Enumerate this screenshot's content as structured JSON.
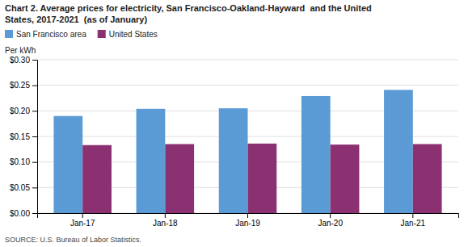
{
  "chart_data": {
    "type": "bar",
    "title": "Chart 2. Average prices for electricity, San Francisco-Oakland-Hayward  and the United\nStates, 2017-2021  (as of January)",
    "y_label": "Per kWh",
    "source": "SOURCE: U.S. Bureau of Labor Statistics.",
    "categories": [
      "Jan-17",
      "Jan-18",
      "Jan-19",
      "Jan-20",
      "Jan-21"
    ],
    "series": [
      {
        "name": "San Francisco area",
        "color": "#5B9BD5",
        "values": [
          0.19,
          0.204,
          0.205,
          0.229,
          0.241
        ]
      },
      {
        "name": "United States",
        "color": "#8B3070",
        "values": [
          0.133,
          0.135,
          0.136,
          0.134,
          0.135
        ]
      }
    ],
    "ylim": [
      0.0,
      0.3
    ],
    "yticks": [
      {
        "value": 0.0,
        "label": "$0.00"
      },
      {
        "value": 0.05,
        "label": "$0.05"
      },
      {
        "value": 0.1,
        "label": "$0.10"
      },
      {
        "value": 0.15,
        "label": "$0.15"
      },
      {
        "value": 0.2,
        "label": "$0.20"
      },
      {
        "value": 0.25,
        "label": "$0.25"
      },
      {
        "value": 0.3,
        "label": "$0.30"
      }
    ],
    "grid": true,
    "legend": "upper left"
  }
}
